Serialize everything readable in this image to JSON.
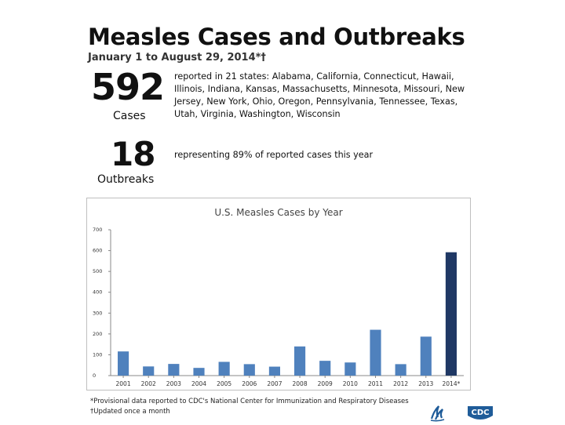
{
  "header": {
    "title": "Measles Cases and Outbreaks",
    "subtitle": "January 1 to August 29, 2014*†"
  },
  "stats": {
    "cases": {
      "number": "592",
      "label": "Cases",
      "description": "reported in 21 states: Alabama, California, Connecticut, Hawaii, Illinois, Indiana, Kansas, Massachusetts, Minnesota, Missouri, New Jersey, New York, Ohio, Oregon, Pennsylvania, Tennessee, Texas, Utah, Virginia, Washington, Wisconsin"
    },
    "outbreaks": {
      "number": "18",
      "label": "Outbreaks",
      "description": "representing 89% of reported cases this year"
    }
  },
  "chart_data": {
    "type": "bar",
    "title": "U.S. Measles Cases by Year",
    "categories": [
      "2001",
      "2002",
      "2003",
      "2004",
      "2005",
      "2006",
      "2007",
      "2008",
      "2009",
      "2010",
      "2011",
      "2012",
      "2013",
      "2014*"
    ],
    "values": [
      116,
      44,
      56,
      37,
      66,
      55,
      43,
      140,
      71,
      63,
      220,
      55,
      187,
      592
    ],
    "yticks": [
      "700",
      "600",
      "500",
      "400",
      "300",
      "200",
      "100",
      "0"
    ],
    "ylim": [
      0,
      700
    ],
    "xlabel": "",
    "ylabel": "",
    "grid": false,
    "bar_color": "#4f81bd",
    "highlight_color": "#1f3864",
    "highlight_index": 13
  },
  "footnotes": {
    "provisional": "*Provisional data reported to CDC's National Center for Immunization and Respiratory Diseases",
    "updated": "†Updated once a month"
  },
  "logos": {
    "hhs_icon": "hhs-eagle-icon",
    "cdc_text": "CDC",
    "cdc_color": "#1f5c99"
  }
}
